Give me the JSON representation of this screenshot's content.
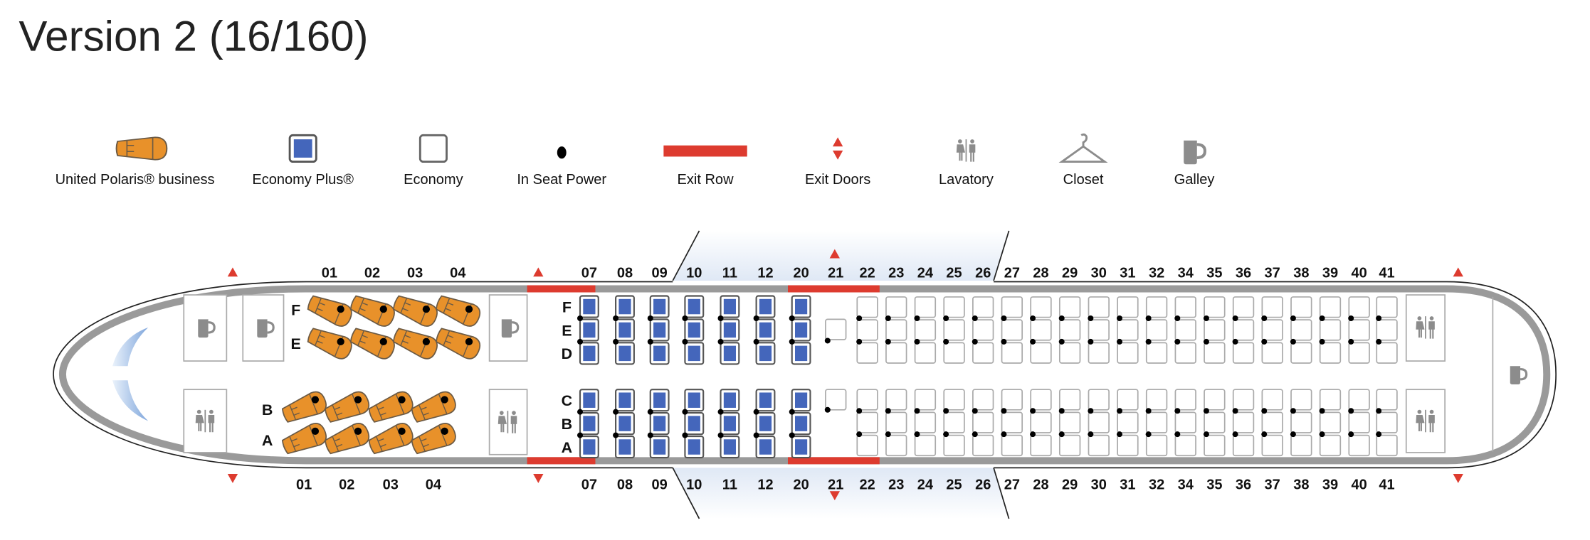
{
  "title": "Version 2 (16/160)",
  "colors": {
    "polaris": "#E8912A",
    "economy_plus": "#4466BB",
    "exit": "#DD3B2F",
    "wall": "#999999",
    "fixture": "#8C8C8C"
  },
  "legend": [
    {
      "label": "United Polaris® business",
      "icon": "polaris-seat-icon"
    },
    {
      "label": "Economy Plus®",
      "icon": "economy-plus-seat-icon"
    },
    {
      "label": "Economy",
      "icon": "economy-seat-icon"
    },
    {
      "label": "In Seat Power",
      "icon": "power-dot-icon"
    },
    {
      "label": "Exit Row",
      "icon": "exit-row-bar-icon"
    },
    {
      "label": "Exit Doors",
      "icon": "exit-doors-icon"
    },
    {
      "label": "Lavatory",
      "icon": "lavatory-icon"
    },
    {
      "label": "Closet",
      "icon": "closet-hanger-icon"
    },
    {
      "label": "Galley",
      "icon": "galley-mug-icon"
    }
  ],
  "business": {
    "rows": [
      "01",
      "02",
      "03",
      "04"
    ],
    "top_letters": [
      "F",
      "E"
    ],
    "bottom_letters": [
      "B",
      "A"
    ]
  },
  "economy_plus": {
    "rows": [
      "07",
      "08",
      "09",
      "10",
      "11",
      "12",
      "20"
    ],
    "top_letters": [
      "F",
      "E",
      "D"
    ],
    "bottom_letters": [
      "C",
      "B",
      "A"
    ]
  },
  "row21": {
    "row": "21"
  },
  "economy": {
    "rows": [
      "22",
      "23",
      "24",
      "25",
      "26",
      "27",
      "28",
      "29",
      "30",
      "31",
      "32",
      "34",
      "35",
      "36",
      "37",
      "38",
      "39",
      "40",
      "41"
    ]
  }
}
